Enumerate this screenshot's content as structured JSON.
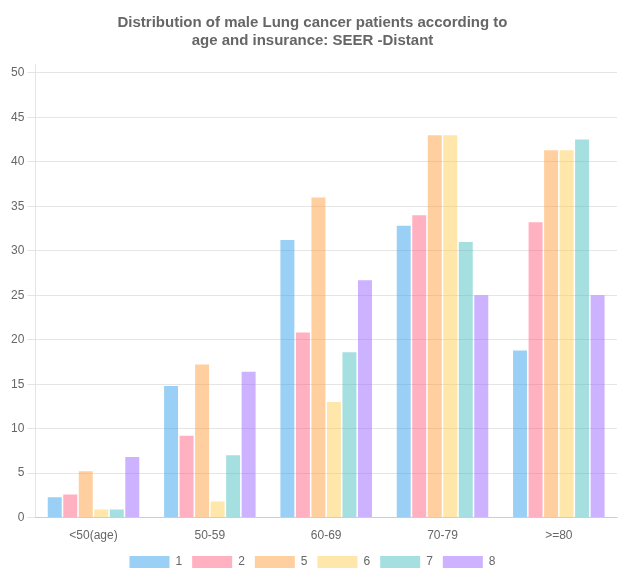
{
  "chart_data": {
    "type": "bar",
    "title": "Distribution of male Lung cancer patients according to\nage and insurance: SEER -Distant",
    "categories": [
      "<50(age)",
      "50-59",
      "60-69",
      "70-79",
      ">=80"
    ],
    "series": [
      {
        "name": "1",
        "values": [
          2.3,
          14.8,
          31.2,
          32.8,
          18.8
        ]
      },
      {
        "name": "2",
        "values": [
          2.6,
          9.2,
          20.8,
          34.0,
          33.2
        ]
      },
      {
        "name": "5",
        "values": [
          5.2,
          17.2,
          36.0,
          43.0,
          41.3
        ]
      },
      {
        "name": "6",
        "values": [
          0.9,
          1.8,
          13.0,
          43.0,
          41.3
        ]
      },
      {
        "name": "7",
        "values": [
          0.9,
          7.0,
          18.6,
          31.0,
          42.5
        ]
      },
      {
        "name": "8",
        "values": [
          6.8,
          16.4,
          26.7,
          25.0,
          25.0
        ]
      }
    ],
    "ylim": [
      0,
      51
    ],
    "yticks": [
      0,
      5,
      10,
      15,
      20,
      25,
      30,
      35,
      40,
      45,
      50
    ],
    "grid": true,
    "legend": "bottom"
  }
}
